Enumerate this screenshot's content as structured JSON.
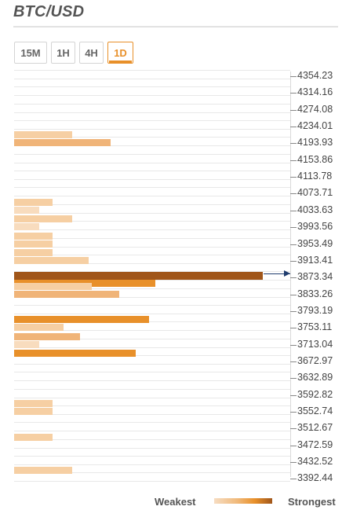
{
  "title": "BTC/USD",
  "tabs": [
    {
      "label": "15M",
      "active": false
    },
    {
      "label": "1H",
      "active": false
    },
    {
      "label": "4H",
      "active": false
    },
    {
      "label": "1D",
      "active": true
    }
  ],
  "current_price": "3873.34",
  "legend": {
    "weakest": "Weakest",
    "strongest": "Strongest"
  },
  "colors": {
    "accent": "#e8902a",
    "weak": "#f6cfa3",
    "medium": "#f0b478",
    "strong": "#e8902a",
    "strongest": "#a0561a",
    "marker": "#1f3c6e"
  },
  "chart_data": {
    "type": "bar",
    "orientation": "horizontal",
    "price_levels": [
      "4354.23",
      "4314.16",
      "4274.08",
      "4234.01",
      "4193.93",
      "4153.86",
      "4113.78",
      "4073.71",
      "4033.63",
      "3993.56",
      "3953.49",
      "3913.41",
      "3873.34",
      "3833.26",
      "3793.19",
      "3753.11",
      "3713.04",
      "3672.97",
      "3632.89",
      "3592.82",
      "3552.74",
      "3512.67",
      "3472.59",
      "3432.52",
      "3392.44"
    ],
    "bars": [
      {
        "price": "4193.93",
        "strength": 0.21,
        "tone": "weak"
      },
      {
        "price": "4193.93",
        "strength": 0.35,
        "tone": "medium"
      },
      {
        "price": "4033.63",
        "strength": 0.14,
        "tone": "weak"
      },
      {
        "price": "4033.63",
        "strength": 0.09,
        "tone": "lightest"
      },
      {
        "price": "3993.56",
        "strength": 0.21,
        "tone": "weak"
      },
      {
        "price": "3993.56",
        "strength": 0.09,
        "tone": "lightest"
      },
      {
        "price": "3953.49",
        "strength": 0.14,
        "tone": "weak"
      },
      {
        "price": "3953.49",
        "strength": 0.14,
        "tone": "weak"
      },
      {
        "price": "3913.41",
        "strength": 0.14,
        "tone": "weak"
      },
      {
        "price": "3913.41",
        "strength": 0.27,
        "tone": "weak"
      },
      {
        "price": "3873.34",
        "strength": 0.9,
        "tone": "strongest"
      },
      {
        "price": "3873.34",
        "strength": 0.51,
        "tone": "strong"
      },
      {
        "price": "3833.26",
        "strength": 0.28,
        "tone": "weak"
      },
      {
        "price": "3833.26",
        "strength": 0.38,
        "tone": "medium"
      },
      {
        "price": "3753.11",
        "strength": 0.49,
        "tone": "strong"
      },
      {
        "price": "3753.11",
        "strength": 0.18,
        "tone": "weak"
      },
      {
        "price": "3713.04",
        "strength": 0.24,
        "tone": "medium"
      },
      {
        "price": "3713.04",
        "strength": 0.09,
        "tone": "lightest"
      },
      {
        "price": "3672.97",
        "strength": 0.44,
        "tone": "strong"
      },
      {
        "price": "3552.74",
        "strength": 0.14,
        "tone": "weak"
      },
      {
        "price": "3552.74",
        "strength": 0.14,
        "tone": "weak"
      },
      {
        "price": "3472.59",
        "strength": 0.14,
        "tone": "weak"
      },
      {
        "price": "3392.44",
        "strength": 0.21,
        "tone": "weak"
      }
    ]
  }
}
